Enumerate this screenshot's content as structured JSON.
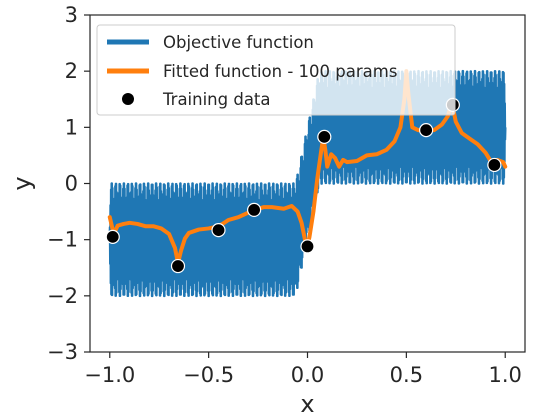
{
  "chart_data": {
    "type": "line",
    "xlabel": "x",
    "ylabel": "y",
    "xlim": [
      -1.1,
      1.1
    ],
    "ylim": [
      -3,
      3
    ],
    "xticks": [
      -1.0,
      -0.5,
      0.0,
      0.5,
      1.0
    ],
    "xtick_labels": [
      "−1.0",
      "−0.5",
      "0.0",
      "0.5",
      "1.0"
    ],
    "yticks": [
      3,
      2,
      1,
      0,
      -1,
      -2,
      -3
    ],
    "ytick_labels": [
      "3",
      "2",
      "1",
      "0",
      "−1",
      "−2",
      "−3"
    ],
    "grid": false,
    "legend_position": "top-left",
    "colors": {
      "objective": "#1f77b4",
      "fitted": "#ff7f0e",
      "training": "#000000"
    },
    "series": [
      {
        "name": "Objective function",
        "kind": "band",
        "description_values": {
          "x_range": [
            -1.0,
            1.0
          ],
          "lower": [
            [
              -1.0,
              -2.0
            ],
            [
              -0.06,
              -2.0
            ],
            [
              0.0,
              -1.0
            ],
            [
              0.06,
              0.0
            ],
            [
              1.0,
              0.0
            ]
          ],
          "upper": [
            [
              -1.0,
              0.0
            ],
            [
              -0.06,
              0.0
            ],
            [
              0.0,
              1.0
            ],
            [
              0.06,
              2.0
            ],
            [
              1.0,
              2.0
            ]
          ]
        }
      },
      {
        "name": "Fitted function - 100 params",
        "kind": "line",
        "points": [
          [
            -1.0,
            -0.6
          ],
          [
            -0.98,
            -0.9
          ],
          [
            -0.96,
            -0.75
          ],
          [
            -0.93,
            -0.72
          ],
          [
            -0.9,
            -0.7
          ],
          [
            -0.86,
            -0.72
          ],
          [
            -0.82,
            -0.76
          ],
          [
            -0.78,
            -0.76
          ],
          [
            -0.74,
            -0.8
          ],
          [
            -0.7,
            -0.9
          ],
          [
            -0.67,
            -1.15
          ],
          [
            -0.655,
            -1.42
          ],
          [
            -0.64,
            -1.2
          ],
          [
            -0.62,
            -0.98
          ],
          [
            -0.6,
            -0.88
          ],
          [
            -0.55,
            -0.82
          ],
          [
            -0.5,
            -0.8
          ],
          [
            -0.46,
            -0.77
          ],
          [
            -0.43,
            -0.72
          ],
          [
            -0.4,
            -0.65
          ],
          [
            -0.35,
            -0.6
          ],
          [
            -0.3,
            -0.52
          ],
          [
            -0.27,
            -0.47
          ],
          [
            -0.22,
            -0.42
          ],
          [
            -0.18,
            -0.42
          ],
          [
            -0.12,
            -0.45
          ],
          [
            -0.08,
            -0.4
          ],
          [
            -0.05,
            -0.5
          ],
          [
            -0.03,
            -0.7
          ],
          [
            -0.01,
            -1.05
          ],
          [
            0.0,
            -1.1
          ],
          [
            0.01,
            -0.95
          ],
          [
            0.03,
            -0.5
          ],
          [
            0.05,
            0.1
          ],
          [
            0.07,
            0.6
          ],
          [
            0.08,
            0.82
          ],
          [
            0.09,
            0.6
          ],
          [
            0.1,
            0.3
          ],
          [
            0.12,
            0.52
          ],
          [
            0.14,
            0.45
          ],
          [
            0.16,
            0.3
          ],
          [
            0.18,
            0.42
          ],
          [
            0.2,
            0.38
          ],
          [
            0.25,
            0.4
          ],
          [
            0.3,
            0.5
          ],
          [
            0.35,
            0.52
          ],
          [
            0.4,
            0.6
          ],
          [
            0.44,
            0.75
          ],
          [
            0.47,
            1.0
          ],
          [
            0.49,
            1.5
          ],
          [
            0.5,
            2.0
          ],
          [
            0.51,
            1.6
          ],
          [
            0.53,
            1.0
          ],
          [
            0.56,
            0.95
          ],
          [
            0.6,
            0.95
          ],
          [
            0.64,
            0.95
          ],
          [
            0.68,
            1.05
          ],
          [
            0.71,
            1.2
          ],
          [
            0.73,
            1.45
          ],
          [
            0.75,
            1.1
          ],
          [
            0.78,
            0.9
          ],
          [
            0.82,
            0.8
          ],
          [
            0.86,
            0.7
          ],
          [
            0.9,
            0.55
          ],
          [
            0.93,
            0.38
          ],
          [
            0.96,
            0.42
          ],
          [
            0.99,
            0.38
          ],
          [
            1.0,
            0.3
          ]
        ]
      },
      {
        "name": "Training data",
        "kind": "scatter",
        "points": [
          [
            -0.985,
            -0.95
          ],
          [
            -0.655,
            -1.47
          ],
          [
            -0.45,
            -0.83
          ],
          [
            -0.27,
            -0.47
          ],
          [
            0.0,
            -1.12
          ],
          [
            0.085,
            0.83
          ],
          [
            0.6,
            0.95
          ],
          [
            0.735,
            1.4
          ],
          [
            0.945,
            0.33
          ]
        ]
      }
    ]
  }
}
